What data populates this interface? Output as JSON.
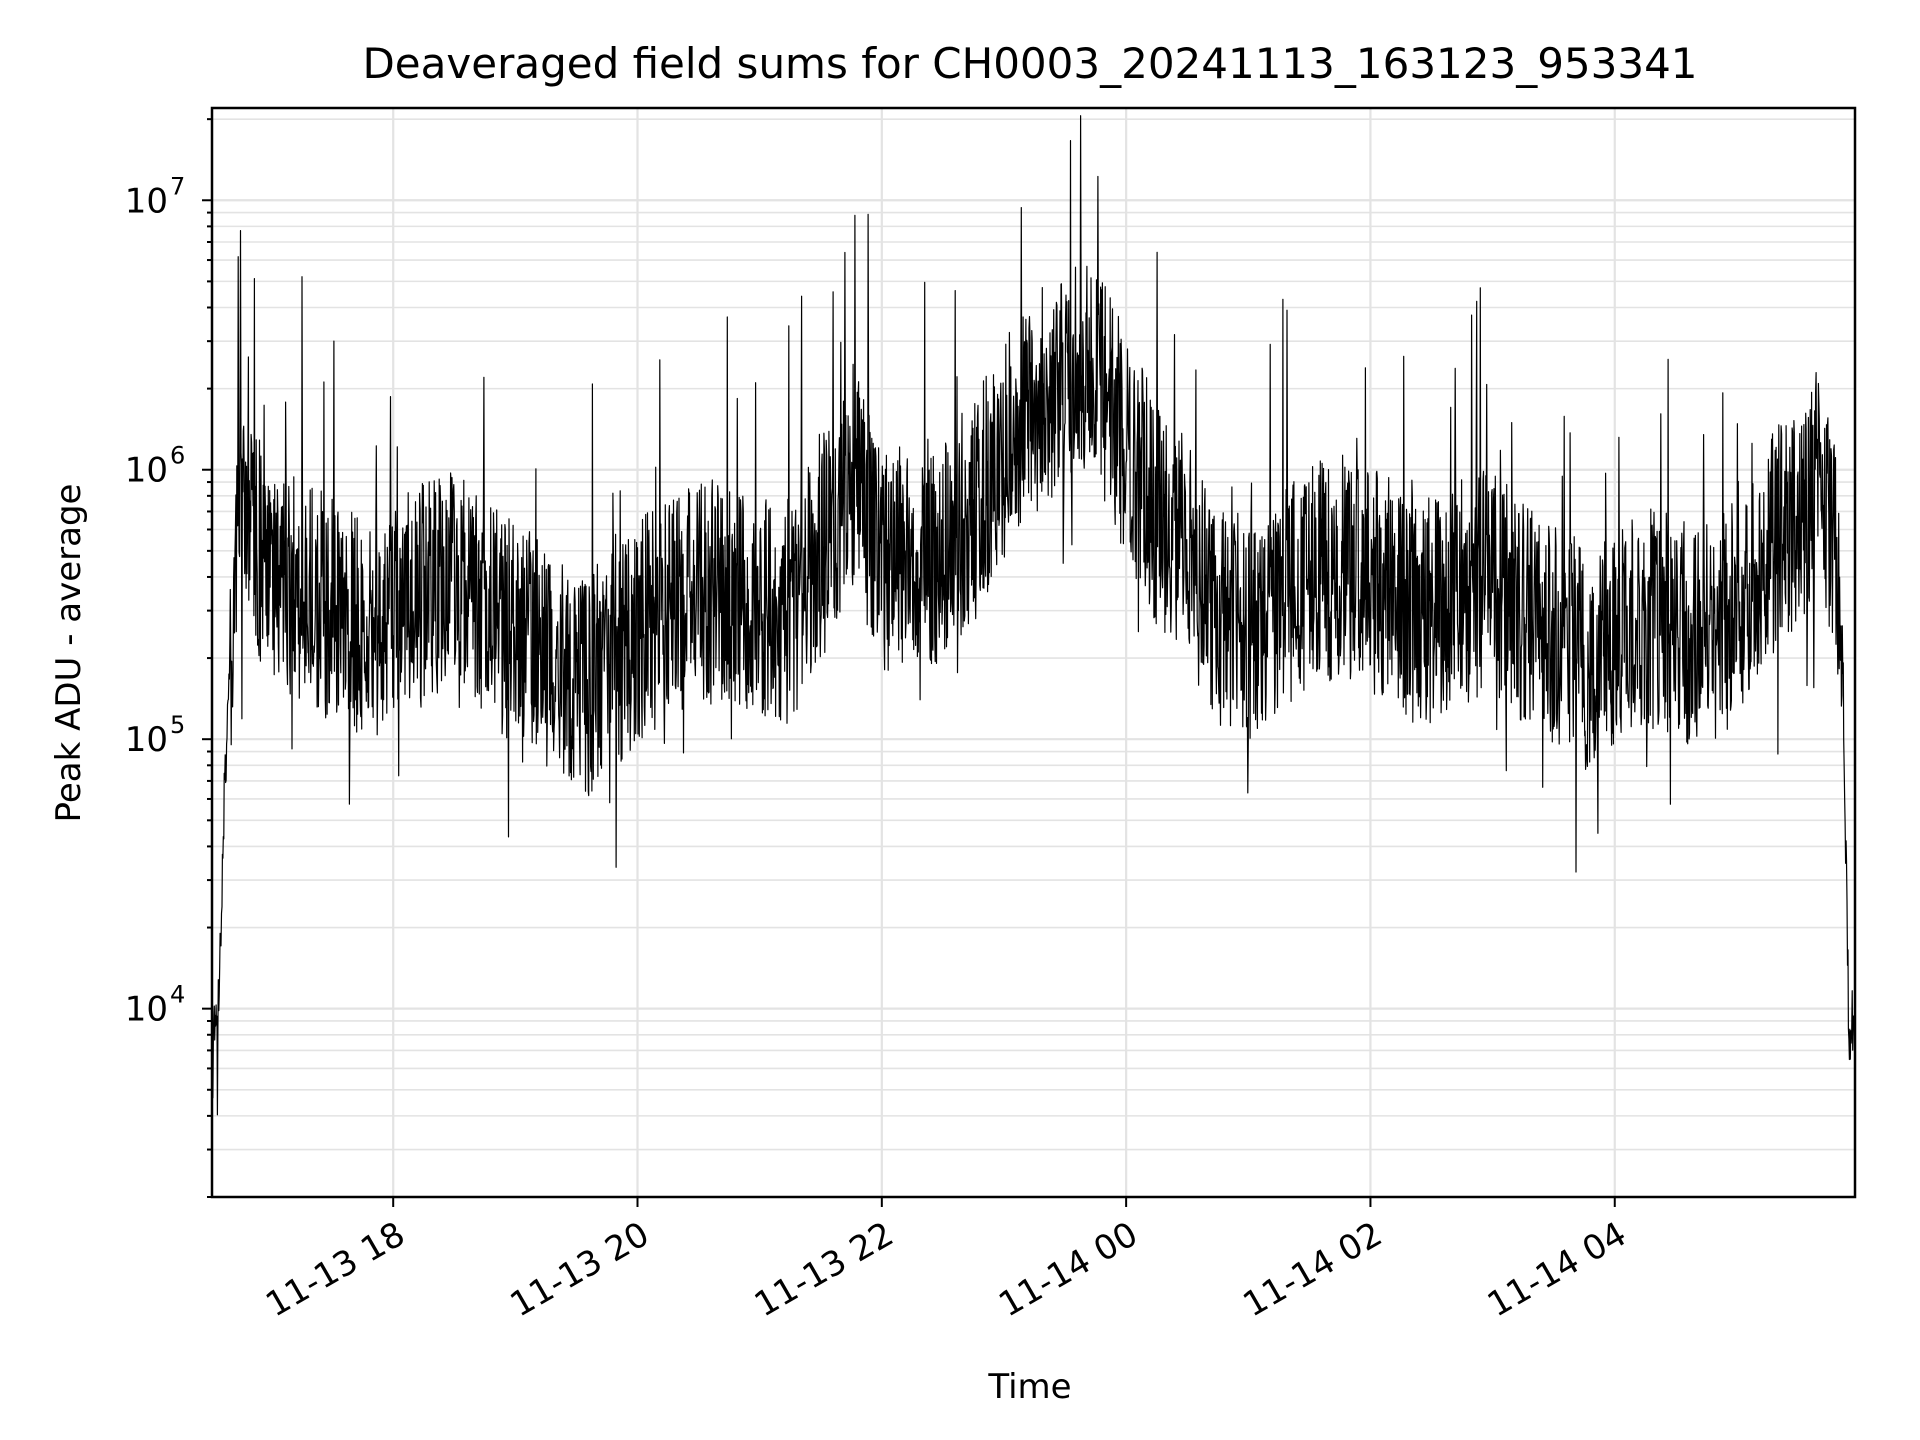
{
  "chart_data": {
    "type": "line",
    "title": "Deaveraged field sums for CH0003_20241113_163123_953341",
    "xlabel": "Time",
    "ylabel": "Peak ADU - average",
    "yscale": "log",
    "ylim": [
      2000,
      22000000
    ],
    "xlim": [
      "2024-11-13 16:31",
      "2024-11-14 05:58"
    ],
    "grid": true,
    "color": "#000000",
    "x_ticks": [
      {
        "t": "2024-11-13 18:00",
        "label": "11-13 18"
      },
      {
        "t": "2024-11-13 20:00",
        "label": "11-13 20"
      },
      {
        "t": "2024-11-13 22:00",
        "label": "11-13 22"
      },
      {
        "t": "2024-11-14 00:00",
        "label": "11-14 00"
      },
      {
        "t": "2024-11-14 02:00",
        "label": "11-14 02"
      },
      {
        "t": "2024-11-14 04:00",
        "label": "11-14 04"
      }
    ],
    "y_ticks": [
      {
        "value": 10000,
        "base": "10",
        "exp": "4"
      },
      {
        "value": 100000,
        "base": "10",
        "exp": "5"
      },
      {
        "value": 1000000,
        "base": "10",
        "exp": "6"
      },
      {
        "value": 10000000,
        "base": "10",
        "exp": "7"
      }
    ],
    "series": [
      {
        "x": [
          "2024-11-13 16:31",
          "2024-11-13 16:33",
          "2024-11-13 16:35",
          "2024-11-13 16:37",
          "2024-11-13 16:40",
          "2024-11-13 16:45",
          "2024-11-13 16:50",
          "2024-11-13 16:55",
          "2024-11-13 17:00",
          "2024-11-13 17:15",
          "2024-11-13 17:30",
          "2024-11-13 17:45",
          "2024-11-13 18:00",
          "2024-11-13 18:15",
          "2024-11-13 18:30",
          "2024-11-13 18:45",
          "2024-11-13 19:00",
          "2024-11-13 19:15",
          "2024-11-13 19:30",
          "2024-11-13 19:45",
          "2024-11-13 20:00",
          "2024-11-13 20:15",
          "2024-11-13 20:30",
          "2024-11-13 20:45",
          "2024-11-13 21:00",
          "2024-11-13 21:15",
          "2024-11-13 21:30",
          "2024-11-13 21:45",
          "2024-11-13 22:00",
          "2024-11-13 22:15",
          "2024-11-13 22:30",
          "2024-11-13 22:45",
          "2024-11-13 23:00",
          "2024-11-13 23:15",
          "2024-11-13 23:30",
          "2024-11-13 23:45",
          "2024-11-14 00:00",
          "2024-11-14 00:15",
          "2024-11-14 00:30",
          "2024-11-14 00:45",
          "2024-11-14 01:00",
          "2024-11-14 01:15",
          "2024-11-14 01:30",
          "2024-11-14 01:45",
          "2024-11-14 02:00",
          "2024-11-14 02:15",
          "2024-11-14 02:30",
          "2024-11-14 02:45",
          "2024-11-14 03:00",
          "2024-11-14 03:15",
          "2024-11-14 03:30",
          "2024-11-14 03:45",
          "2024-11-14 04:00",
          "2024-11-14 04:15",
          "2024-11-14 04:30",
          "2024-11-14 04:45",
          "2024-11-14 05:00",
          "2024-11-14 05:15",
          "2024-11-14 05:30",
          "2024-11-14 05:40",
          "2024-11-14 05:48",
          "2024-11-14 05:52",
          "2024-11-14 05:55",
          "2024-11-14 05:58"
        ],
        "y": [
          12000,
          8000,
          15000,
          60000,
          200000,
          800000,
          700000,
          500000,
          400000,
          350000,
          300000,
          250000,
          300000,
          350000,
          400000,
          300000,
          250000,
          200000,
          150000,
          180000,
          250000,
          300000,
          350000,
          350000,
          300000,
          300000,
          500000,
          1000000,
          450000,
          500000,
          500000,
          700000,
          1200000,
          1800000,
          2000000,
          2500000,
          1200000,
          700000,
          500000,
          300000,
          250000,
          300000,
          400000,
          450000,
          400000,
          300000,
          300000,
          350000,
          400000,
          300000,
          250000,
          200000,
          250000,
          300000,
          250000,
          250000,
          300000,
          500000,
          700000,
          900000,
          600000,
          200000,
          8000,
          10000
        ]
      }
    ]
  }
}
